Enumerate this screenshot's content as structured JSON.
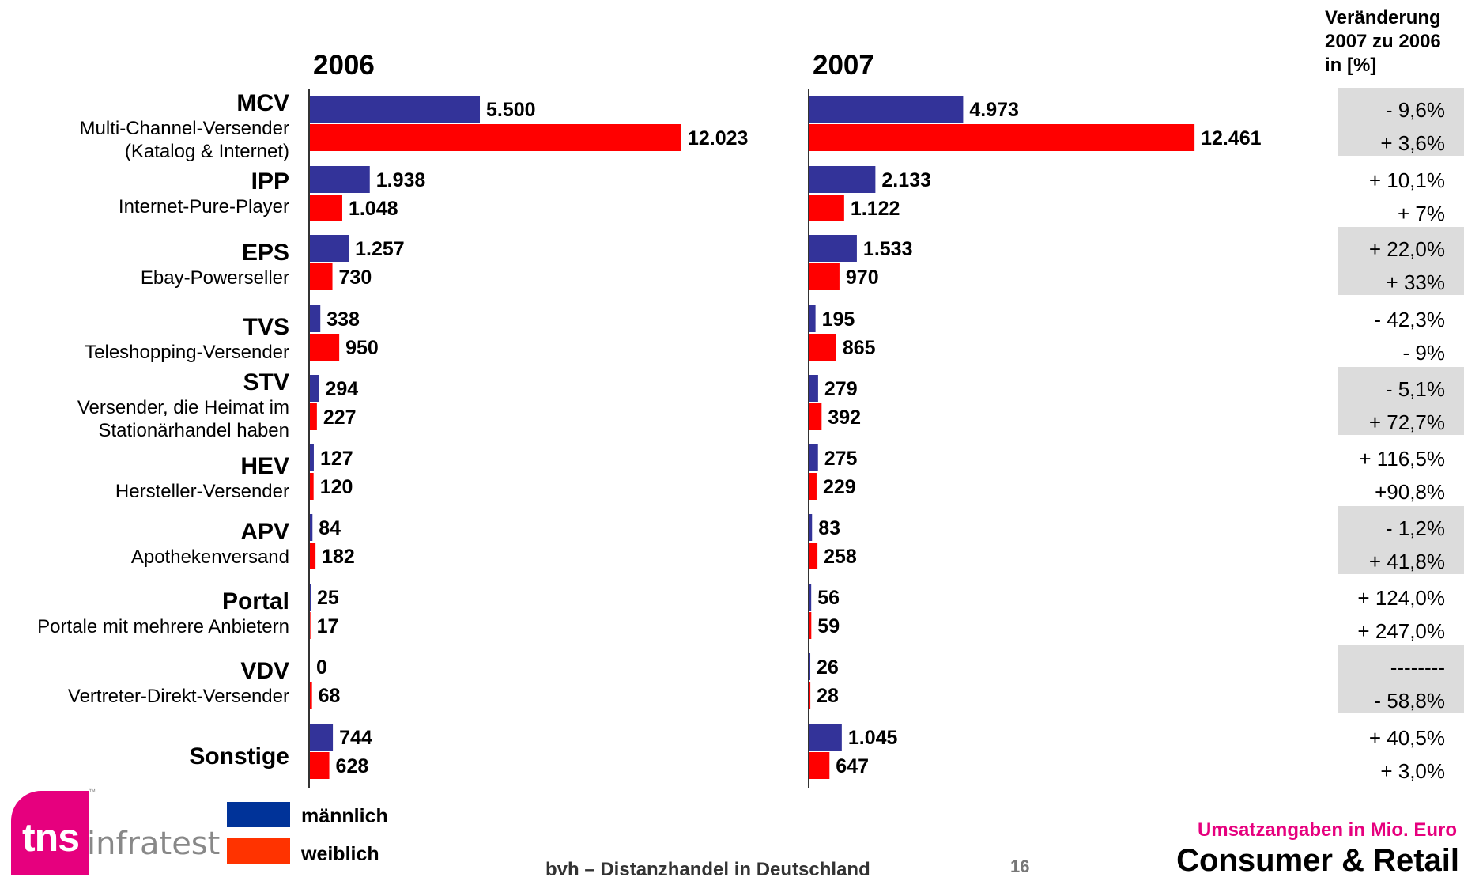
{
  "colors": {
    "male": "#333399",
    "female": "#ff0000",
    "legend_male": "#003399",
    "legend_female": "#ff3300",
    "shade": "#dcdcdc",
    "brand": "#e6007e"
  },
  "chart_data": {
    "type": "bar",
    "orientation": "horizontal",
    "series_names": [
      "männlich",
      "weiblich"
    ],
    "panels": [
      {
        "title": "2006"
      },
      {
        "title": "2007"
      }
    ],
    "categories": [
      {
        "abbr": "MCV",
        "desc": [
          "Multi-Channel-Versender",
          "(Katalog & Internet)"
        ],
        "v2006": [
          5500,
          12023
        ],
        "l2006": [
          "5.500",
          "12.023"
        ],
        "v2007": [
          4973,
          12461
        ],
        "l2007": [
          "4.973",
          "12.461"
        ],
        "change": [
          "- 9,6%",
          "+ 3,6%"
        ],
        "shaded": true
      },
      {
        "abbr": "IPP",
        "desc": [
          "Internet-Pure-Player"
        ],
        "v2006": [
          1938,
          1048
        ],
        "l2006": [
          "1.938",
          "1.048"
        ],
        "v2007": [
          2133,
          1122
        ],
        "l2007": [
          "2.133",
          "1.122"
        ],
        "change": [
          "+ 10,1%",
          "+ 7%"
        ],
        "shaded": false
      },
      {
        "abbr": "EPS",
        "desc": [
          "Ebay-Powerseller"
        ],
        "v2006": [
          1257,
          730
        ],
        "l2006": [
          "1.257",
          "730"
        ],
        "v2007": [
          1533,
          970
        ],
        "l2007": [
          "1.533",
          "970"
        ],
        "change": [
          "+ 22,0%",
          "+ 33%"
        ],
        "shaded": true
      },
      {
        "abbr": "TVS",
        "desc": [
          "Teleshopping-Versender"
        ],
        "v2006": [
          338,
          950
        ],
        "l2006": [
          "338",
          "950"
        ],
        "v2007": [
          195,
          865
        ],
        "l2007": [
          "195",
          "865"
        ],
        "change": [
          "- 42,3%",
          "- 9%"
        ],
        "shaded": false
      },
      {
        "abbr": "STV",
        "desc": [
          "Versender, die Heimat im",
          "Stationärhandel haben"
        ],
        "v2006": [
          294,
          227
        ],
        "l2006": [
          "294",
          "227"
        ],
        "v2007": [
          279,
          392
        ],
        "l2007": [
          "279",
          "392"
        ],
        "change": [
          "- 5,1%",
          "+ 72,7%"
        ],
        "shaded": true
      },
      {
        "abbr": "HEV",
        "desc": [
          "Hersteller-Versender"
        ],
        "v2006": [
          127,
          120
        ],
        "l2006": [
          "127",
          "120"
        ],
        "v2007": [
          275,
          229
        ],
        "l2007": [
          "275",
          "229"
        ],
        "change": [
          "+ 116,5%",
          "+90,8%"
        ],
        "shaded": false
      },
      {
        "abbr": "APV",
        "desc": [
          "Apothekenversand"
        ],
        "v2006": [
          84,
          182
        ],
        "l2006": [
          "84",
          "182"
        ],
        "v2007": [
          83,
          258
        ],
        "l2007": [
          "83",
          "258"
        ],
        "change": [
          "- 1,2%",
          "+ 41,8%"
        ],
        "shaded": true
      },
      {
        "abbr": "Portal",
        "desc": [
          "Portale mit mehrere Anbietern"
        ],
        "v2006": [
          25,
          17
        ],
        "l2006": [
          "25",
          "17"
        ],
        "v2007": [
          56,
          59
        ],
        "l2007": [
          "56",
          "59"
        ],
        "change": [
          "+ 124,0%",
          "+ 247,0%"
        ],
        "shaded": false
      },
      {
        "abbr": "VDV",
        "desc": [
          "Vertreter-Direkt-Versender"
        ],
        "v2006": [
          0,
          68
        ],
        "l2006": [
          "0",
          "68"
        ],
        "v2007": [
          26,
          28
        ],
        "l2007": [
          "26",
          "28"
        ],
        "change": [
          "--------",
          "- 58,8%"
        ],
        "shaded": true
      },
      {
        "abbr": "Sonstige",
        "desc": [],
        "v2006": [
          744,
          628
        ],
        "l2006": [
          "744",
          "628"
        ],
        "v2007": [
          1045,
          647
        ],
        "l2007": [
          "1.045",
          "647"
        ],
        "change": [
          "+ 40,5%",
          "+ 3,0%"
        ],
        "shaded": false
      }
    ],
    "change_header": [
      "Veränderung",
      "2007 zu 2006",
      "in [%]"
    ],
    "units_note": "Umsatzangaben in Mio. Euro"
  },
  "footer": {
    "center": "bvh – Distanzhandel in Deutschland",
    "page": "16",
    "right": "Consumer & Retail"
  },
  "logo": {
    "tns": "tns",
    "infratest": "infratest",
    "tm": "™"
  }
}
